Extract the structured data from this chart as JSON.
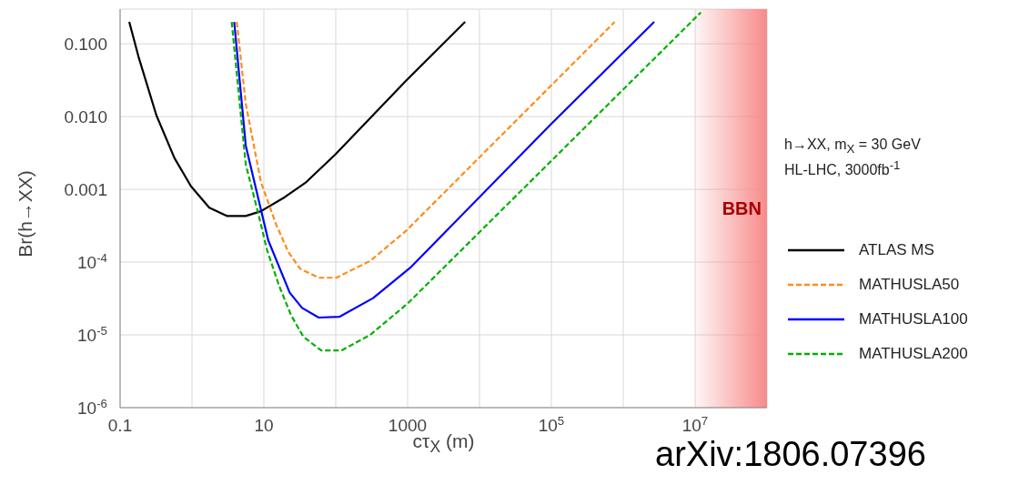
{
  "chart_data": {
    "type": "line",
    "xlabel": "cτ$_{X}$ (m)",
    "ylabel": "Br(h→XX)",
    "xlim": [
      0.1,
      100000000
    ],
    "ylim": [
      1e-06,
      0.3
    ],
    "xticks": [
      0.1,
      {
        "value": 1,
        "label": null
      },
      10,
      {
        "value": 100,
        "label": null
      },
      1000,
      {
        "value": 10000,
        "label": null
      },
      {
        "value": 100000,
        "label": "10$^{5}$"
      },
      {
        "value": 1000000,
        "label": null
      },
      {
        "value": 10000000,
        "label": "10$^{7}$"
      }
    ],
    "yticks": [
      {
        "value": 1e-06,
        "label": "10$^{-6}$"
      },
      {
        "value": 1e-05,
        "label": "10$^{-5}$"
      },
      {
        "value": 0.0001,
        "label": "10$^{-4}$"
      },
      {
        "value": 0.001,
        "label": "0.001"
      },
      {
        "value": 0.01,
        "label": "0.010"
      },
      {
        "value": 0.1,
        "label": "0.100"
      }
    ],
    "log": "xy",
    "grid": true,
    "legend": "right",
    "marker": "none",
    "bands": [
      {
        "axis": "x",
        "from": 10000000,
        "to": 100000000,
        "label": "BBN",
        "color": "#f88a8a"
      }
    ],
    "annotations": [
      "h→XX, m$_{X}$ = 30 GeV",
      "HL-LHC, 3000fb$^{-1}$",
      "arXiv:1806.07396"
    ],
    "series": [
      {
        "name": "ATLAS MS",
        "color": "#000000",
        "line_style": "solid",
        "x": [
          0.134,
          0.18,
          0.32,
          0.57,
          0.97,
          1.74,
          3.1,
          5.6,
          9.1,
          19.5,
          39,
          98,
          950,
          6300
        ],
        "values": [
          0.2,
          0.067,
          0.0104,
          0.0027,
          0.0011,
          0.00056,
          0.00043,
          0.00043,
          0.0005,
          0.00078,
          0.00126,
          0.003,
          0.031,
          0.2
        ]
      },
      {
        "name": "MATHUSLA50",
        "color": "#ff8c1a",
        "line_style": "dashed",
        "x": [
          4.2,
          5.6,
          9.1,
          14.8,
          21.9,
          32,
          58,
          102,
          302,
          955,
          760000
        ],
        "values": [
          0.2,
          0.015,
          0.00126,
          0.00033,
          0.000138,
          8.1e-05,
          6.1e-05,
          6.1e-05,
          0.000104,
          0.00027,
          0.2
        ]
      },
      {
        "name": "MATHUSLA100",
        "color": "#0000ff",
        "line_style": "solid",
        "x": [
          3.87,
          5.6,
          9.1,
          11.5,
          22.9,
          34,
          58,
          112,
          331,
          1120,
          98000,
          2700000
        ],
        "values": [
          0.2,
          0.004,
          0.00053,
          0.0002,
          3.8e-05,
          2.35e-05,
          1.73e-05,
          1.77e-05,
          3.2e-05,
          8.6e-05,
          0.0078,
          0.2
        ]
      },
      {
        "name": "MATHUSLA200",
        "color": "#00b000",
        "line_style": "dashed",
        "x": [
          3.57,
          5.6,
          8.3,
          11,
          16.2,
          24,
          35.5,
          63,
          120,
          302,
          1000,
          12000000
        ],
        "values": [
          0.2,
          0.0022,
          0.00048,
          0.00015,
          4.8e-05,
          1.85e-05,
          9.4e-06,
          6.1e-06,
          6.1e-06,
          1e-05,
          2.7e-05,
          0.27
        ]
      }
    ]
  }
}
